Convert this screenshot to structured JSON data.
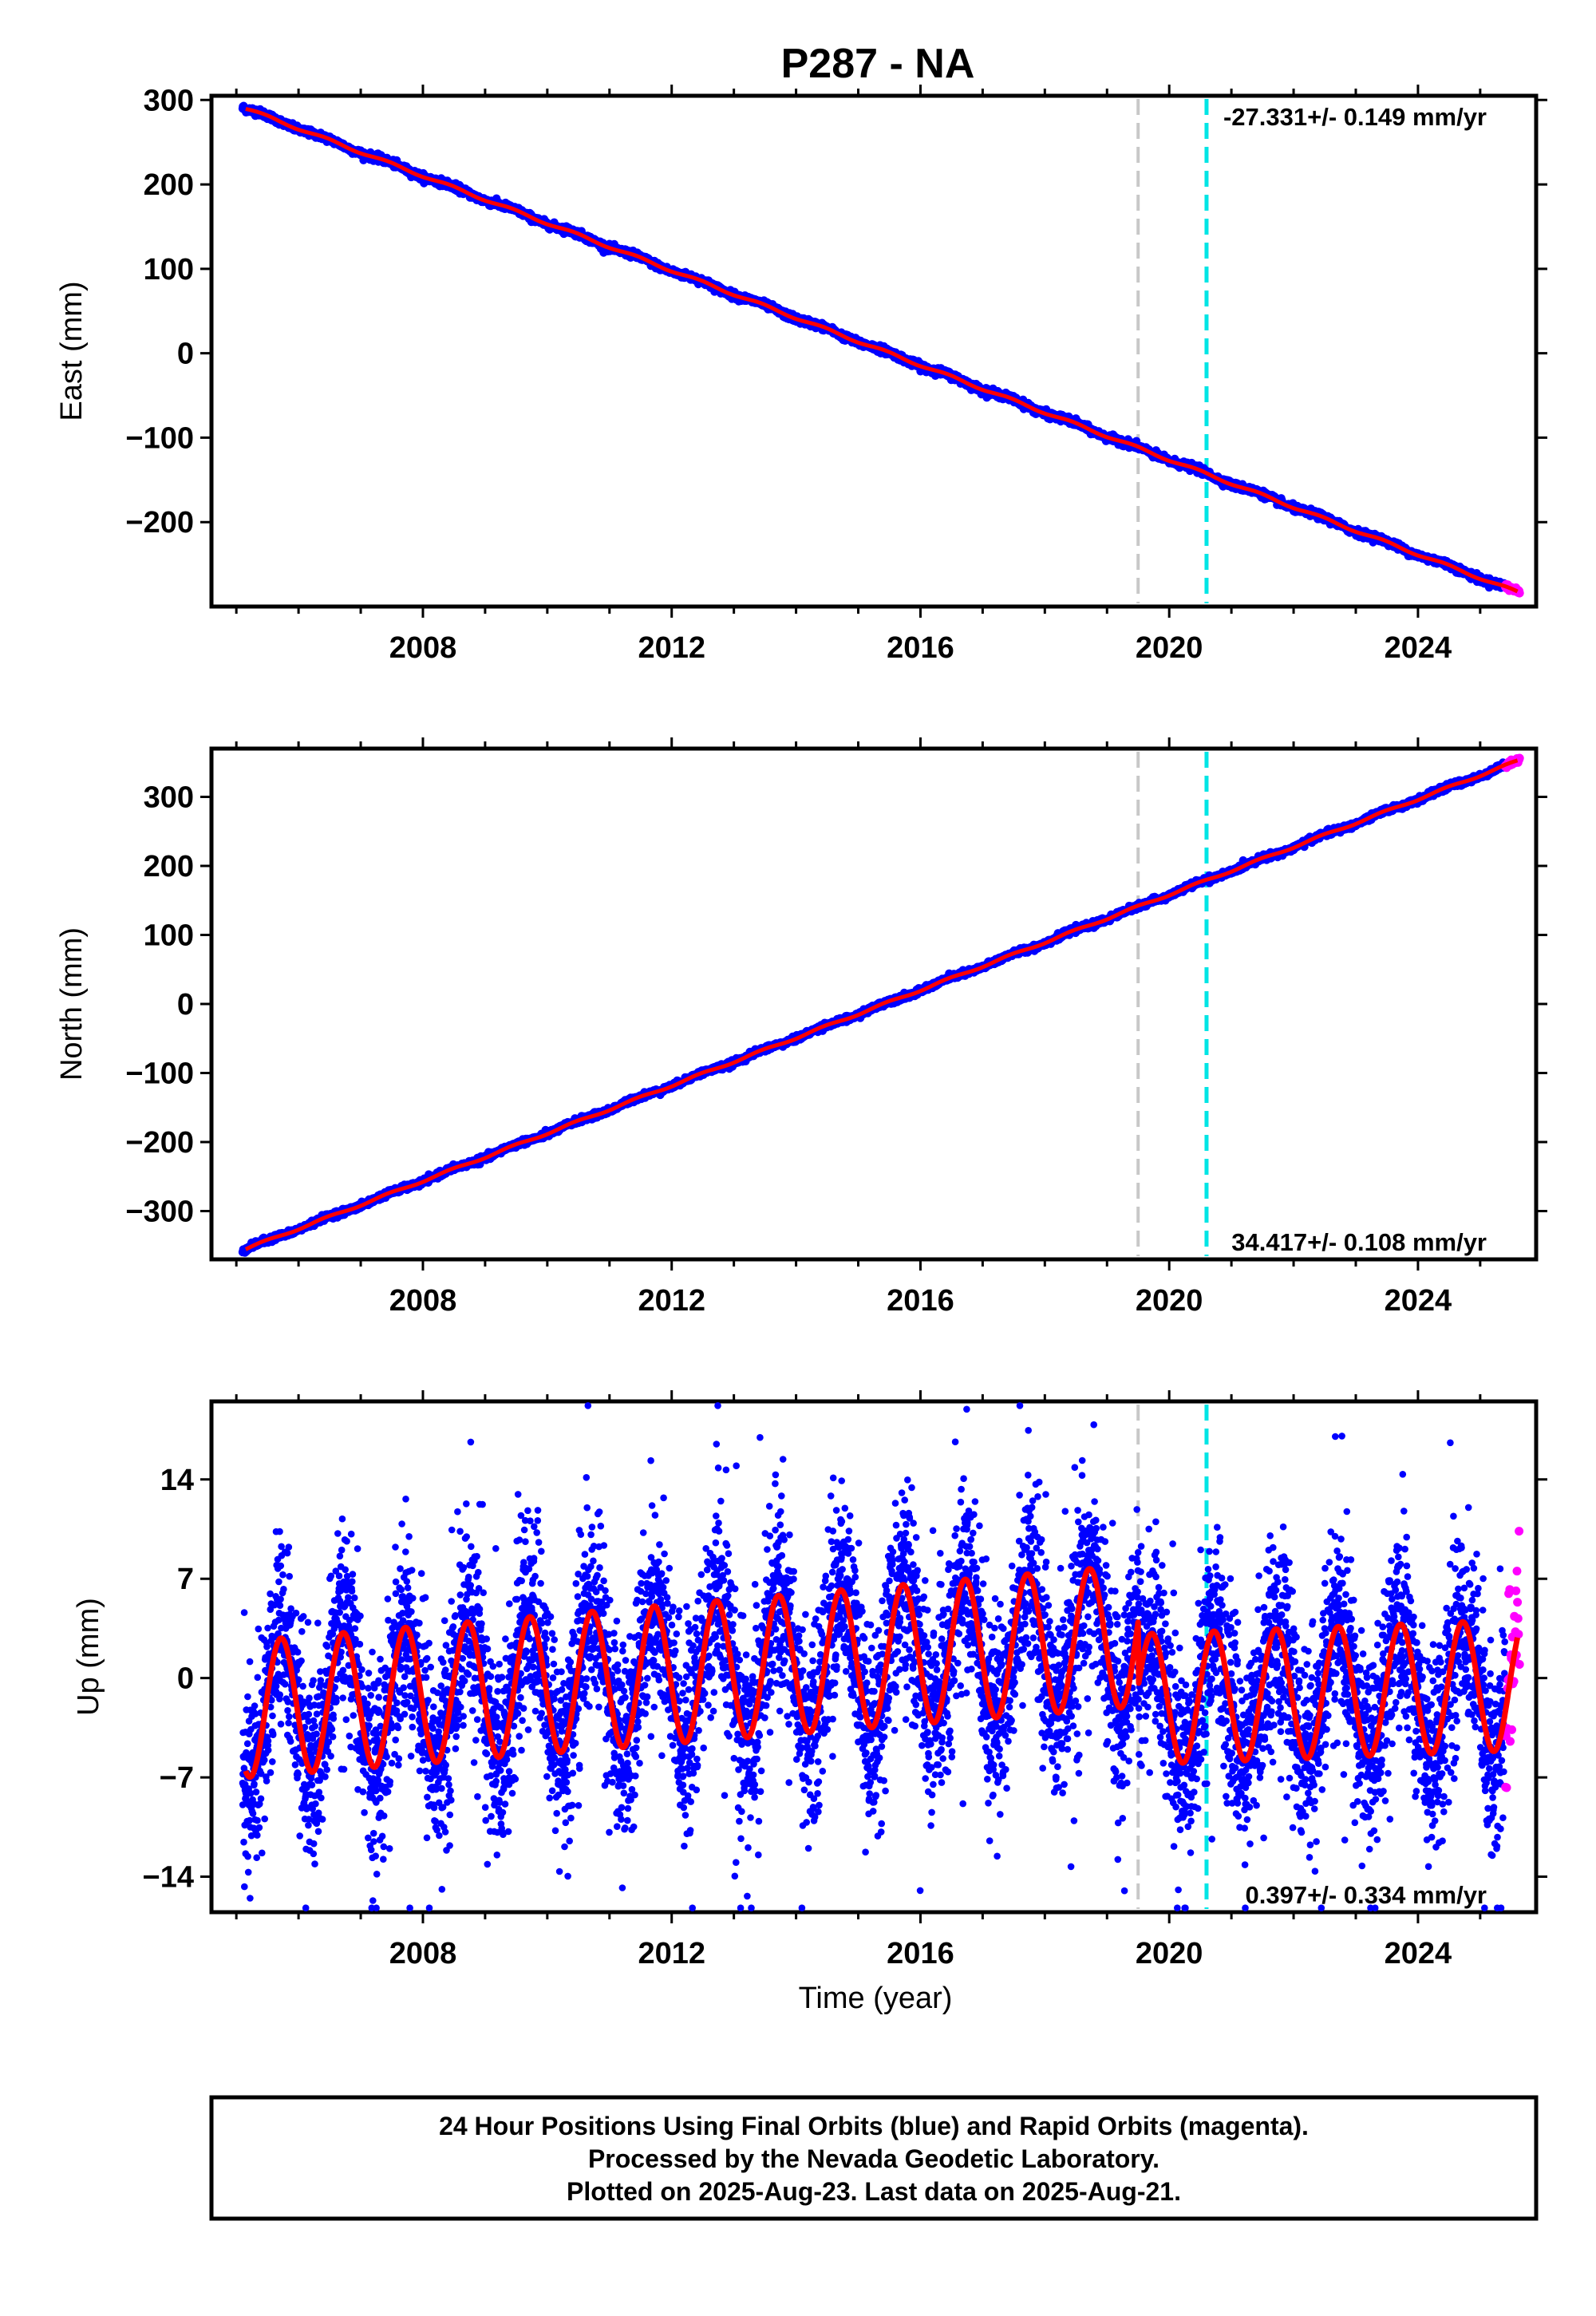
{
  "title": "P287 - NA",
  "xlabel": "Time (year)",
  "footer": {
    "line1": "24 Hour Positions Using Final Orbits (blue) and Rapid Orbits (magenta).",
    "line2": "Processed by the Nevada Geodetic Laboratory.",
    "line3": "Plotted on 2025-Aug-23. Last data on 2025-Aug-21."
  },
  "colors": {
    "final_orbits": "#0000ff",
    "rapid_orbits": "#ff00ff",
    "model_fit": "#ff0000",
    "event_gray": "#c8c8c8",
    "event_cyan": "#00e5e5"
  },
  "chart_data": [
    {
      "type": "scatter",
      "ylabel": "East (mm)",
      "rate_label": "-27.331+/- 0.149 mm/yr",
      "xlim": [
        2004.6,
        2025.9
      ],
      "ylim": [
        -300,
        305
      ],
      "xticks": [
        "2008",
        "2012",
        "2016",
        "2020",
        "2024"
      ],
      "xtick_values": [
        2008,
        2012,
        2016,
        2020,
        2024
      ],
      "yticks": [
        "300",
        "200",
        "100",
        "0",
        "−100",
        "−200"
      ],
      "ytick_values": [
        300,
        200,
        100,
        0,
        -100,
        -200
      ],
      "event_lines": [
        {
          "x": 2019.5,
          "color": "gray"
        },
        {
          "x": 2020.6,
          "color": "cyan"
        }
      ],
      "trend": {
        "start_x": 2005.15,
        "start_y": 290,
        "end_x": 2025.6,
        "end_y": -283
      },
      "seasonal_amplitude_mm": 1.5,
      "series": [
        {
          "name": "Final Orbits (blue)",
          "x_range": [
            2005.1,
            2025.4
          ],
          "noise_mm": 2
        },
        {
          "name": "Rapid Orbits (magenta)",
          "x_range": [
            2025.4,
            2025.64
          ],
          "noise_mm": 2
        }
      ]
    },
    {
      "type": "scatter",
      "ylabel": "North (mm)",
      "rate_label": "34.417+/- 0.108 mm/yr",
      "xlim": [
        2004.6,
        2025.9
      ],
      "ylim": [
        -370,
        370
      ],
      "xticks": [
        "2008",
        "2012",
        "2016",
        "2020",
        "2024"
      ],
      "xtick_values": [
        2008,
        2012,
        2016,
        2020,
        2024
      ],
      "yticks": [
        "300",
        "200",
        "100",
        "0",
        "−100",
        "−200",
        "−300"
      ],
      "ytick_values": [
        300,
        200,
        100,
        0,
        -100,
        -200,
        -300
      ],
      "event_lines": [
        {
          "x": 2019.5,
          "color": "gray"
        },
        {
          "x": 2020.6,
          "color": "cyan"
        }
      ],
      "trend": {
        "start_x": 2005.15,
        "start_y": -355,
        "end_x": 2025.6,
        "end_y": 352
      },
      "seasonal_amplitude_mm": 1.5,
      "series": [
        {
          "name": "Final Orbits (blue)",
          "x_range": [
            2005.1,
            2025.4
          ],
          "noise_mm": 2
        },
        {
          "name": "Rapid Orbits (magenta)",
          "x_range": [
            2025.4,
            2025.64
          ],
          "noise_mm": 2
        }
      ]
    },
    {
      "type": "scatter",
      "ylabel": "Up (mm)",
      "rate_label": "0.397+/- 0.334 mm/yr",
      "xlim": [
        2004.6,
        2025.9
      ],
      "ylim": [
        -16.5,
        19.5
      ],
      "xticks": [
        "2008",
        "2012",
        "2016",
        "2020",
        "2024"
      ],
      "xtick_values": [
        2008,
        2012,
        2016,
        2020,
        2024
      ],
      "yticks": [
        "14",
        "7",
        "0",
        "−7",
        "−14"
      ],
      "ytick_values": [
        14,
        7,
        0,
        -7,
        -14
      ],
      "event_lines": [
        {
          "x": 2019.5,
          "color": "gray"
        },
        {
          "x": 2020.6,
          "color": "cyan"
        }
      ],
      "annual_fit": {
        "phase_peak_fraction": 0.72,
        "segments": [
          {
            "x_range": [
              2005.15,
              2019.5
            ],
            "start_offset": -2.2,
            "end_offset": 3.0,
            "start_amplitude": 4.8,
            "end_amplitude": 5.0
          },
          {
            "x_range": [
              2019.5,
              2025.6
            ],
            "start_offset": -1.5,
            "end_offset": -0.5,
            "start_amplitude": 4.6,
            "end_amplitude": 4.6
          }
        ]
      },
      "series": [
        {
          "name": "Final Orbits (blue)",
          "x_range": [
            2005.1,
            2025.4
          ],
          "noise_mm": 3.2
        },
        {
          "name": "Rapid Orbits (magenta)",
          "x_range": [
            2025.4,
            2025.64
          ],
          "noise_mm": 3.2
        }
      ]
    }
  ]
}
